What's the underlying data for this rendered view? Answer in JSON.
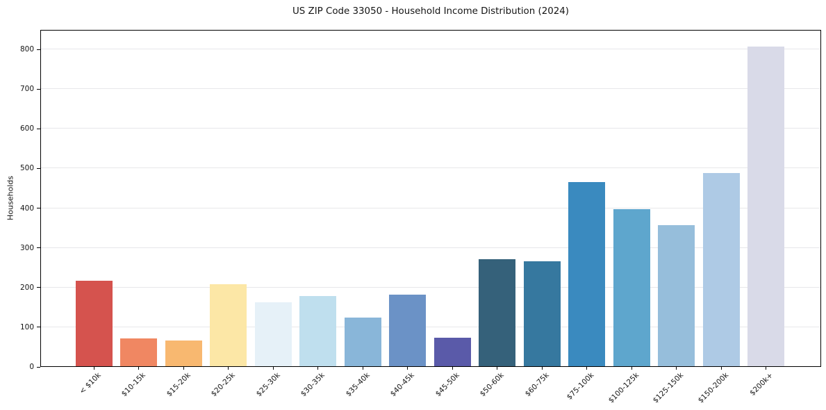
{
  "chart_data": {
    "type": "bar",
    "title": "US ZIP Code 33050 - Household Income Distribution (2024)",
    "xlabel": "",
    "ylabel": "Households",
    "categories": [
      "< $10k",
      "$10-15k",
      "$15-20k",
      "$20-25k",
      "$25-30k",
      "$30-35k",
      "$35-40k",
      "$40-45k",
      "$45-50k",
      "$50-60k",
      "$60-75k",
      "$75-100k",
      "$100-125k",
      "$125-150k",
      "$150-200k",
      "$200k+"
    ],
    "values": [
      215,
      70,
      65,
      206,
      161,
      177,
      122,
      181,
      72,
      270,
      264,
      464,
      396,
      355,
      487,
      805
    ],
    "bar_colors": [
      "#d5534e",
      "#f08762",
      "#f8b870",
      "#fce7a6",
      "#e6f1f8",
      "#bfdfee",
      "#89b6d9",
      "#6b92c6",
      "#5a5aa9",
      "#35617a",
      "#36789f",
      "#3a8abf",
      "#5ea6cd",
      "#96bedb",
      "#aecae5",
      "#d9dae8"
    ],
    "y_ticks": [
      0,
      100,
      200,
      300,
      400,
      500,
      600,
      700,
      800
    ],
    "ylim": [
      0,
      849
    ],
    "grid": "horizontal",
    "legend": "none",
    "background_color": "#ffffff",
    "gridline_color": "#e7e7ea"
  }
}
